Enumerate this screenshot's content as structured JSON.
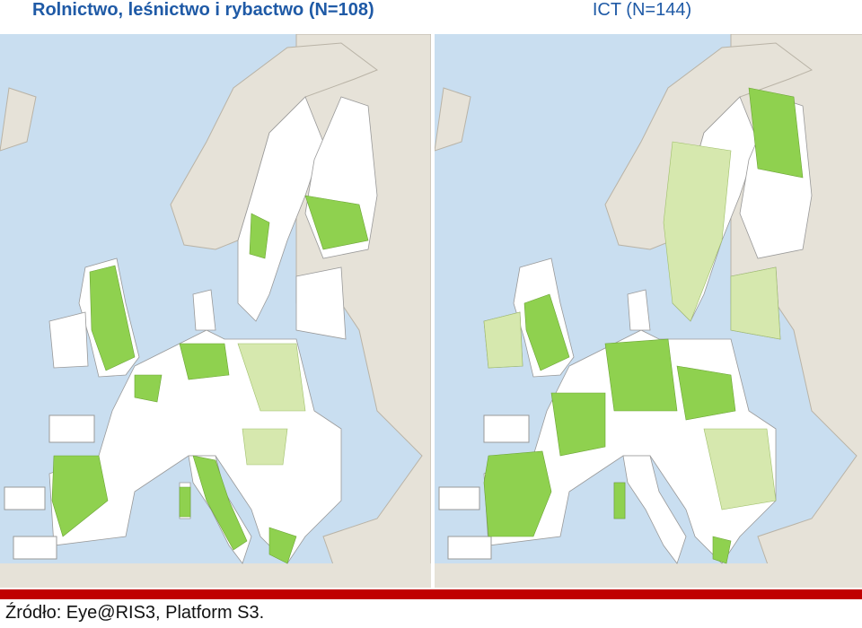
{
  "panels": [
    {
      "title": "Rolnictwo, leśnictwo i rybactwo (N=108)"
    },
    {
      "title": "ICT (N=144)"
    }
  ],
  "source": "Źródło: Eye@RIS3, Platform S3."
}
